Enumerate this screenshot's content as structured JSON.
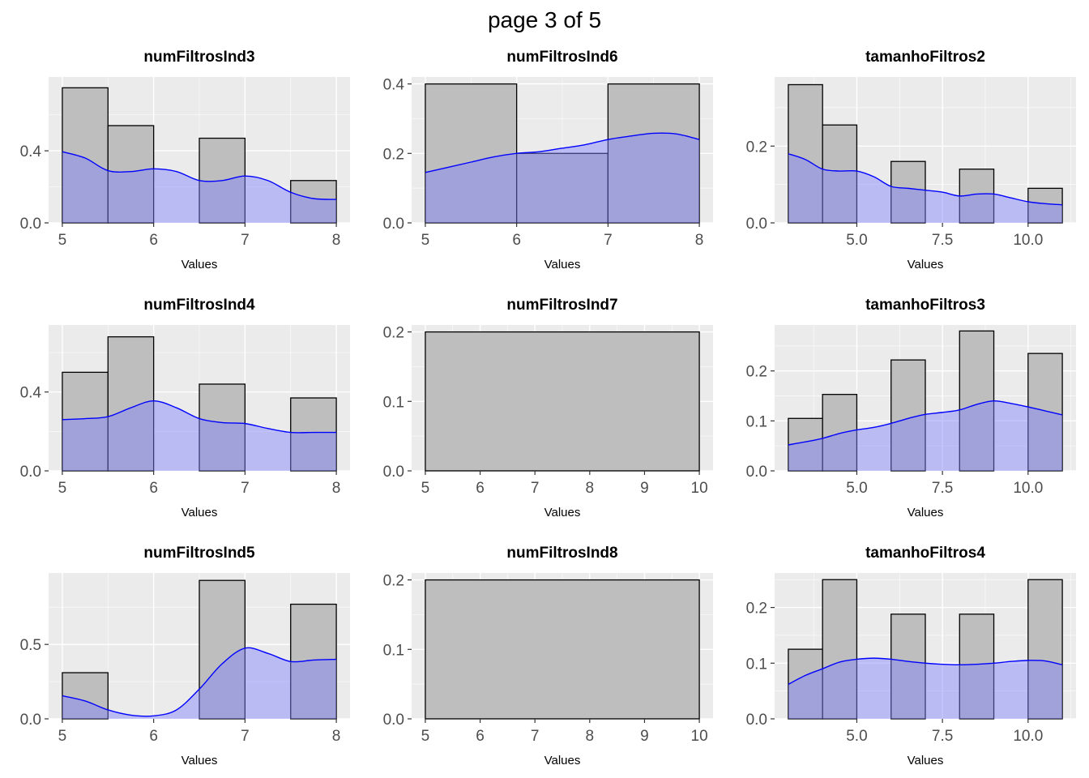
{
  "page_title": "page 3 of 5",
  "colors": {
    "panel_bg": "#ebebeb",
    "grid_major": "#ffffff",
    "bar_fill": "#bebebe",
    "bar_stroke": "#000000",
    "density_line": "#0000ff",
    "density_fill": "#8080ff"
  },
  "chart_data": [
    {
      "type": "bar",
      "title": "numFiltrosInd3",
      "xlabel": "Values",
      "ylabel": "",
      "xlim": [
        4.85,
        8.15
      ],
      "ylim": [
        0,
        0.81
      ],
      "x_ticks": [
        5,
        6,
        7,
        8
      ],
      "x_tick_labels": [
        "5",
        "6",
        "7",
        "8"
      ],
      "y_ticks": [
        0,
        0.4
      ],
      "y_tick_labels": [
        "0.0",
        "0.4"
      ],
      "bins": [
        {
          "x0": 5,
          "x1": 5.5,
          "value": 0.75
        },
        {
          "x0": 5.5,
          "x1": 6,
          "value": 0.54
        },
        {
          "x0": 6,
          "x1": 6.5,
          "value": 0
        },
        {
          "x0": 6.5,
          "x1": 7,
          "value": 0.47
        },
        {
          "x0": 7,
          "x1": 7.5,
          "value": 0
        },
        {
          "x0": 7.5,
          "x1": 8,
          "value": 0.235
        }
      ],
      "density": [
        [
          5,
          0.395
        ],
        [
          5.25,
          0.36
        ],
        [
          5.5,
          0.29
        ],
        [
          5.75,
          0.285
        ],
        [
          6,
          0.3
        ],
        [
          6.25,
          0.285
        ],
        [
          6.5,
          0.235
        ],
        [
          6.75,
          0.235
        ],
        [
          7,
          0.26
        ],
        [
          7.25,
          0.235
        ],
        [
          7.5,
          0.17
        ],
        [
          7.75,
          0.135
        ],
        [
          8,
          0.13
        ]
      ]
    },
    {
      "type": "bar",
      "title": "numFiltrosInd4",
      "xlabel": "Values",
      "ylabel": "",
      "xlim": [
        4.85,
        8.15
      ],
      "ylim": [
        0,
        0.74
      ],
      "x_ticks": [
        5,
        6,
        7,
        8
      ],
      "x_tick_labels": [
        "5",
        "6",
        "7",
        "8"
      ],
      "y_ticks": [
        0,
        0.4
      ],
      "y_tick_labels": [
        "0.0",
        "0.4"
      ],
      "bins": [
        {
          "x0": 5,
          "x1": 5.5,
          "value": 0.5
        },
        {
          "x0": 5.5,
          "x1": 6,
          "value": 0.68
        },
        {
          "x0": 6,
          "x1": 6.5,
          "value": 0
        },
        {
          "x0": 6.5,
          "x1": 7,
          "value": 0.44
        },
        {
          "x0": 7,
          "x1": 7.5,
          "value": 0
        },
        {
          "x0": 7.5,
          "x1": 8,
          "value": 0.37
        }
      ],
      "density": [
        [
          5,
          0.26
        ],
        [
          5.25,
          0.265
        ],
        [
          5.5,
          0.275
        ],
        [
          5.75,
          0.32
        ],
        [
          6,
          0.355
        ],
        [
          6.25,
          0.32
        ],
        [
          6.5,
          0.265
        ],
        [
          6.75,
          0.245
        ],
        [
          7,
          0.24
        ],
        [
          7.25,
          0.215
        ],
        [
          7.5,
          0.195
        ],
        [
          7.75,
          0.195
        ],
        [
          8,
          0.195
        ]
      ]
    },
    {
      "type": "bar",
      "title": "numFiltrosInd5",
      "xlabel": "Values",
      "ylabel": "",
      "xlim": [
        4.85,
        8.15
      ],
      "ylim": [
        0,
        0.98
      ],
      "x_ticks": [
        5,
        6,
        7,
        8
      ],
      "x_tick_labels": [
        "5",
        "6",
        "7",
        "8"
      ],
      "y_ticks": [
        0,
        0.5
      ],
      "y_tick_labels": [
        "0.0",
        "0.5"
      ],
      "bins": [
        {
          "x0": 5,
          "x1": 5.5,
          "value": 0.31
        },
        {
          "x0": 5.5,
          "x1": 6,
          "value": 0
        },
        {
          "x0": 6,
          "x1": 6.5,
          "value": 0
        },
        {
          "x0": 6.5,
          "x1": 7,
          "value": 0.93
        },
        {
          "x0": 7,
          "x1": 7.5,
          "value": 0
        },
        {
          "x0": 7.5,
          "x1": 8,
          "value": 0.77
        }
      ],
      "density": [
        [
          5,
          0.155
        ],
        [
          5.25,
          0.12
        ],
        [
          5.5,
          0.06
        ],
        [
          5.75,
          0.025
        ],
        [
          6,
          0.02
        ],
        [
          6.25,
          0.06
        ],
        [
          6.5,
          0.2
        ],
        [
          6.75,
          0.37
        ],
        [
          7,
          0.475
        ],
        [
          7.25,
          0.44
        ],
        [
          7.5,
          0.385
        ],
        [
          7.75,
          0.395
        ],
        [
          8,
          0.4
        ]
      ]
    },
    {
      "type": "bar",
      "title": "numFiltrosInd6",
      "xlabel": "Values",
      "ylabel": "",
      "xlim": [
        4.85,
        8.15
      ],
      "ylim": [
        0,
        0.42
      ],
      "x_ticks": [
        5,
        6,
        7,
        8
      ],
      "x_tick_labels": [
        "5",
        "6",
        "7",
        "8"
      ],
      "y_ticks": [
        0,
        0.2,
        0.4
      ],
      "y_tick_labels": [
        "0.0",
        "0.2",
        "0.4"
      ],
      "bins": [
        {
          "x0": 5,
          "x1": 6,
          "value": 0.4
        },
        {
          "x0": 6,
          "x1": 7,
          "value": 0.2
        },
        {
          "x0": 7,
          "x1": 8,
          "value": 0.4
        }
      ],
      "density": [
        [
          5,
          0.145
        ],
        [
          5.25,
          0.16
        ],
        [
          5.5,
          0.175
        ],
        [
          5.75,
          0.19
        ],
        [
          6,
          0.2
        ],
        [
          6.25,
          0.205
        ],
        [
          6.5,
          0.215
        ],
        [
          6.75,
          0.225
        ],
        [
          7,
          0.24
        ],
        [
          7.25,
          0.25
        ],
        [
          7.5,
          0.258
        ],
        [
          7.75,
          0.256
        ],
        [
          8,
          0.24
        ]
      ]
    },
    {
      "type": "bar",
      "title": "numFiltrosInd7",
      "xlabel": "Values",
      "ylabel": "",
      "xlim": [
        4.75,
        10.25
      ],
      "ylim": [
        0,
        0.21
      ],
      "x_ticks": [
        5,
        6,
        7,
        8,
        9,
        10
      ],
      "x_tick_labels": [
        "5",
        "6",
        "7",
        "8",
        "9",
        "10"
      ],
      "y_ticks": [
        0,
        0.1,
        0.2
      ],
      "y_tick_labels": [
        "0.0",
        "0.1",
        "0.2"
      ],
      "bins": [
        {
          "x0": 5,
          "x1": 10,
          "value": 0.2
        }
      ],
      "density": []
    },
    {
      "type": "bar",
      "title": "numFiltrosInd8",
      "xlabel": "Values",
      "ylabel": "",
      "xlim": [
        4.75,
        10.25
      ],
      "ylim": [
        0,
        0.21
      ],
      "x_ticks": [
        5,
        6,
        7,
        8,
        9,
        10
      ],
      "x_tick_labels": [
        "5",
        "6",
        "7",
        "8",
        "9",
        "10"
      ],
      "y_ticks": [
        0,
        0.1,
        0.2
      ],
      "y_tick_labels": [
        "0.0",
        "0.1",
        "0.2"
      ],
      "bins": [
        {
          "x0": 5,
          "x1": 10,
          "value": 0.2
        }
      ],
      "density": []
    },
    {
      "type": "bar",
      "title": "tamanhoFiltros2",
      "xlabel": "Values",
      "ylabel": "",
      "xlim": [
        2.6,
        11.4
      ],
      "ylim": [
        0,
        0.38
      ],
      "x_ticks": [
        5,
        7.5,
        10
      ],
      "x_tick_labels": [
        "5.0",
        "7.5",
        "10.0"
      ],
      "y_ticks": [
        0,
        0.2
      ],
      "y_tick_labels": [
        "0.0",
        "0.2"
      ],
      "bins": [
        {
          "x0": 3,
          "x1": 4,
          "value": 0.36
        },
        {
          "x0": 4,
          "x1": 5,
          "value": 0.255
        },
        {
          "x0": 5,
          "x1": 6,
          "value": 0
        },
        {
          "x0": 6,
          "x1": 7,
          "value": 0.16
        },
        {
          "x0": 7,
          "x1": 8,
          "value": 0
        },
        {
          "x0": 8,
          "x1": 9,
          "value": 0.14
        },
        {
          "x0": 9,
          "x1": 10,
          "value": 0
        },
        {
          "x0": 10,
          "x1": 11,
          "value": 0.09
        }
      ],
      "density": [
        [
          3,
          0.18
        ],
        [
          3.5,
          0.165
        ],
        [
          4,
          0.14
        ],
        [
          4.5,
          0.135
        ],
        [
          5,
          0.135
        ],
        [
          5.5,
          0.12
        ],
        [
          6,
          0.095
        ],
        [
          6.5,
          0.09
        ],
        [
          7,
          0.085
        ],
        [
          7.5,
          0.08
        ],
        [
          8,
          0.07
        ],
        [
          8.5,
          0.075
        ],
        [
          9,
          0.075
        ],
        [
          9.5,
          0.065
        ],
        [
          10,
          0.055
        ],
        [
          10.5,
          0.05
        ],
        [
          11,
          0.047
        ]
      ]
    },
    {
      "type": "bar",
      "title": "tamanhoFiltros3",
      "xlabel": "Values",
      "ylabel": "",
      "xlim": [
        2.6,
        11.4
      ],
      "ylim": [
        0,
        0.292
      ],
      "x_ticks": [
        5,
        7.5,
        10
      ],
      "x_tick_labels": [
        "5.0",
        "7.5",
        "10.0"
      ],
      "y_ticks": [
        0,
        0.1,
        0.2
      ],
      "y_tick_labels": [
        "0.0",
        "0.1",
        "0.2"
      ],
      "bins": [
        {
          "x0": 3,
          "x1": 4,
          "value": 0.105
        },
        {
          "x0": 4,
          "x1": 5,
          "value": 0.153
        },
        {
          "x0": 5,
          "x1": 6,
          "value": 0
        },
        {
          "x0": 6,
          "x1": 7,
          "value": 0.222
        },
        {
          "x0": 7,
          "x1": 8,
          "value": 0
        },
        {
          "x0": 8,
          "x1": 9,
          "value": 0.28
        },
        {
          "x0": 9,
          "x1": 10,
          "value": 0
        },
        {
          "x0": 10,
          "x1": 11,
          "value": 0.235
        }
      ],
      "density": [
        [
          3,
          0.052
        ],
        [
          3.5,
          0.058
        ],
        [
          4,
          0.065
        ],
        [
          4.5,
          0.075
        ],
        [
          5,
          0.082
        ],
        [
          5.5,
          0.087
        ],
        [
          6,
          0.095
        ],
        [
          6.5,
          0.105
        ],
        [
          7,
          0.113
        ],
        [
          7.5,
          0.117
        ],
        [
          8,
          0.122
        ],
        [
          8.5,
          0.133
        ],
        [
          9,
          0.14
        ],
        [
          9.5,
          0.135
        ],
        [
          10,
          0.128
        ],
        [
          10.5,
          0.12
        ],
        [
          11,
          0.112
        ]
      ]
    },
    {
      "type": "bar",
      "title": "tamanhoFiltros4",
      "xlabel": "Values",
      "ylabel": "",
      "xlim": [
        2.6,
        11.4
      ],
      "ylim": [
        0,
        0.262
      ],
      "x_ticks": [
        5,
        7.5,
        10
      ],
      "x_tick_labels": [
        "5.0",
        "7.5",
        "10.0"
      ],
      "y_ticks": [
        0,
        0.1,
        0.2
      ],
      "y_tick_labels": [
        "0.0",
        "0.1",
        "0.2"
      ],
      "bins": [
        {
          "x0": 3,
          "x1": 4,
          "value": 0.125
        },
        {
          "x0": 4,
          "x1": 5,
          "value": 0.25
        },
        {
          "x0": 5,
          "x1": 6,
          "value": 0
        },
        {
          "x0": 6,
          "x1": 7,
          "value": 0.188
        },
        {
          "x0": 7,
          "x1": 8,
          "value": 0
        },
        {
          "x0": 8,
          "x1": 9,
          "value": 0.188
        },
        {
          "x0": 9,
          "x1": 10,
          "value": 0
        },
        {
          "x0": 10,
          "x1": 11,
          "value": 0.25
        }
      ],
      "density": [
        [
          3,
          0.062
        ],
        [
          3.5,
          0.078
        ],
        [
          4,
          0.09
        ],
        [
          4.5,
          0.102
        ],
        [
          5,
          0.107
        ],
        [
          5.5,
          0.109
        ],
        [
          6,
          0.107
        ],
        [
          6.5,
          0.103
        ],
        [
          7,
          0.1
        ],
        [
          7.5,
          0.098
        ],
        [
          8,
          0.097
        ],
        [
          8.5,
          0.098
        ],
        [
          9,
          0.1
        ],
        [
          9.5,
          0.103
        ],
        [
          10,
          0.105
        ],
        [
          10.5,
          0.104
        ],
        [
          11,
          0.097
        ]
      ]
    }
  ]
}
